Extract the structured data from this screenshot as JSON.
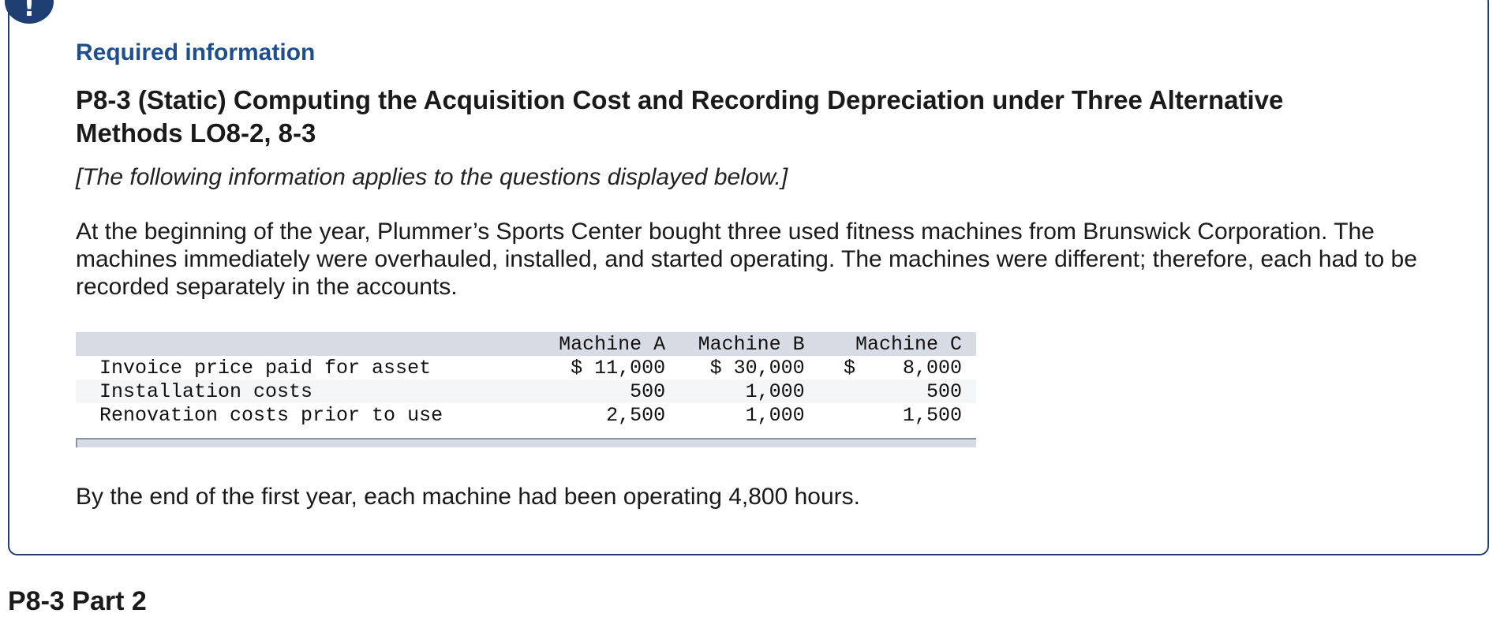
{
  "alert_badge": {
    "symbol": "!",
    "color": "#1f3f73"
  },
  "card": {
    "label": "Required information",
    "title": "P8-3 (Static) Computing the Acquisition Cost and Recording Depreciation under Three Alternative Methods LO8-2, 8-3",
    "intro_note": "[The following information applies to the questions displayed below.]",
    "paragraph": "At the beginning of the year, Plummer’s Sports Center bought three used fitness machines from Brunswick Corporation. The machines immediately were overhauled, installed, and started operating. The machines were different; therefore, each had to be recorded separately in the accounts.",
    "closing_text": "By the end of the first year, each machine had been operating 4,800 hours."
  },
  "table": {
    "columns": [
      "",
      "Machine A",
      "Machine B",
      "Machine C"
    ],
    "rows": [
      {
        "label": "Invoice price paid for asset",
        "a": "$ 11,000",
        "b": "$ 30,000",
        "c": "$    8,000"
      },
      {
        "label": "Installation costs",
        "a": "500",
        "b": "1,000",
        "c": "500"
      },
      {
        "label": "Renovation costs prior to use",
        "a": "2,500",
        "b": "1,000",
        "c": "1,500"
      }
    ]
  },
  "next_section": {
    "heading": "P8-3 Part 2"
  },
  "colors": {
    "accent": "#1f3f73",
    "label": "#1f4e8c",
    "table_header": "#d7dbe4"
  }
}
